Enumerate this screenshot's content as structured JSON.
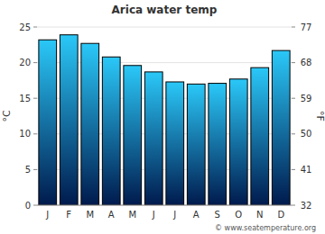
{
  "chart_data": {
    "type": "bar",
    "title": "Arica water temp",
    "y_label": "°C",
    "y2_label": "°F",
    "source": "© www.seatemperature.org",
    "categories": [
      "J",
      "F",
      "M",
      "A",
      "M",
      "J",
      "J",
      "A",
      "S",
      "O",
      "N",
      "D"
    ],
    "values": [
      23.2,
      23.9,
      22.7,
      20.8,
      19.6,
      18.7,
      17.3,
      17.0,
      17.1,
      17.7,
      19.3,
      21.7
    ],
    "color": "#2ac8f8",
    "ylim": [
      0,
      25
    ],
    "yticks": [
      0,
      5,
      10,
      15,
      20,
      25
    ],
    "y2lim": [
      32,
      77
    ],
    "y2ticks": [
      32,
      41,
      50,
      59,
      68,
      77
    ],
    "grid": true
  }
}
